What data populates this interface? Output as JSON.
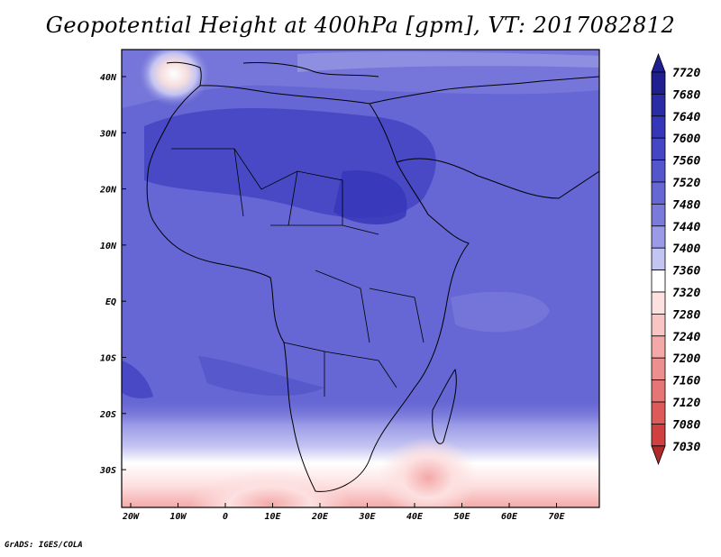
{
  "title": "Geopotential Height at 400hPa [gpm], VT: 2017082812",
  "credit": "GrADS: IGES/COLA",
  "axes": {
    "lon_labels": [
      "20W",
      "10W",
      "0",
      "10E",
      "20E",
      "30E",
      "40E",
      "50E",
      "60E",
      "70E"
    ],
    "lat_labels": [
      "40N",
      "30N",
      "20N",
      "10N",
      "EQ",
      "10S",
      "20S",
      "30S"
    ]
  },
  "colorbar": {
    "levels": [
      "7720",
      "7680",
      "7640",
      "7600",
      "7560",
      "7520",
      "7480",
      "7440",
      "7400",
      "7360",
      "7320",
      "7280",
      "7240",
      "7200",
      "7160",
      "7120",
      "7080",
      "7030"
    ],
    "colors": [
      "#1f1f8f",
      "#2b2ba6",
      "#3636b8",
      "#4646c4",
      "#5656cc",
      "#6666d4",
      "#7a7adb",
      "#9a9ae6",
      "#c4c4f2",
      "#ffffff",
      "#fde0e0",
      "#f9c4c4",
      "#f4a8a8",
      "#ee8f8f",
      "#e67676",
      "#dd5a5a",
      "#cf4040",
      "#b02a2a"
    ]
  }
}
